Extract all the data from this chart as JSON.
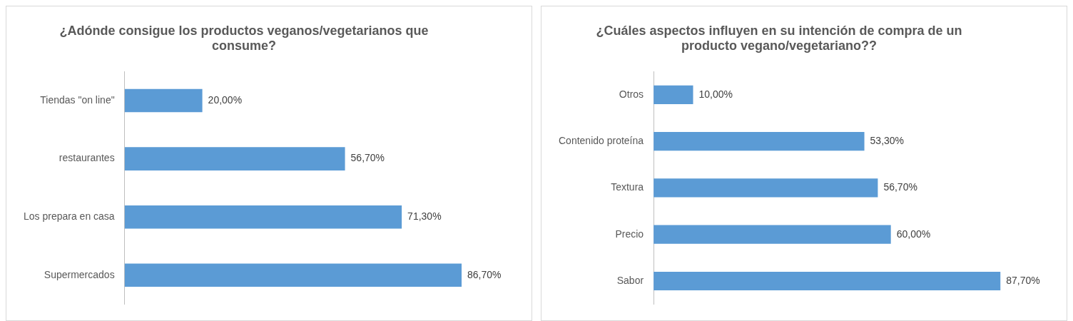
{
  "chart_data": [
    {
      "type": "bar",
      "orientation": "horizontal",
      "title": "¿Adónde consigue los productos veganos/vegetarianos que consume?",
      "categories": [
        "Tiendas \"on line\"",
        "restaurantes",
        "Los prepara en casa",
        "Supermercados"
      ],
      "values": [
        20.0,
        56.7,
        71.3,
        86.7
      ],
      "value_labels": [
        "20,00%",
        "56,70%",
        "71,30%",
        "86,70%"
      ],
      "color": "#5b9bd5",
      "tick_labels": "y"
    },
    {
      "type": "bar",
      "orientation": "horizontal",
      "title": "¿Cuáles aspectos influyen en su intención de compra de un producto vegano/vegetariano??",
      "categories": [
        "Otros",
        "Contenido proteína",
        "Textura",
        "Precio",
        "Sabor"
      ],
      "values": [
        10.0,
        53.3,
        56.7,
        60.0,
        87.7
      ],
      "value_labels": [
        "10,00%",
        "53,30%",
        "56,70%",
        "60,00%",
        "87,70%"
      ],
      "color": "#5b9bd5",
      "tick_labels": "y"
    }
  ]
}
